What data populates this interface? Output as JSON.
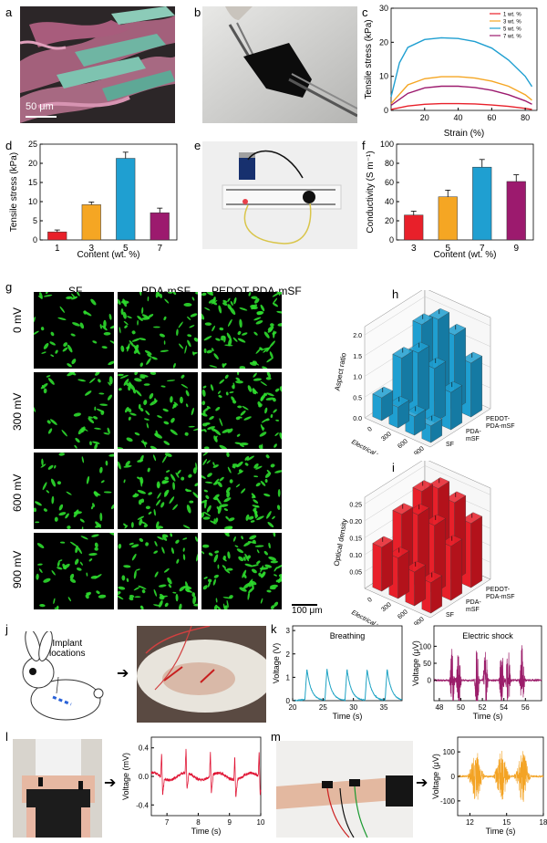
{
  "panel_labels": [
    "a",
    "b",
    "c",
    "d",
    "e",
    "f",
    "g",
    "h",
    "i",
    "j",
    "k",
    "l",
    "m"
  ],
  "panel_a": {
    "scalebar": "50 μm"
  },
  "colors": {
    "red": "#e8202a",
    "orange": "#f5a623",
    "blue": "#1f9fd1",
    "purple": "#9c1a6e",
    "cell_green": "#2edc2e",
    "breath": "#1fa3c4",
    "shock": "#9b1d6a",
    "ecg": "#e01535",
    "emg": "#f3a324"
  },
  "panel_g": {
    "col_labels": [
      "SF",
      "PDA-mSF",
      "PEDOT-PDA-mSF"
    ],
    "row_labels": [
      "0 mV",
      "300 mV",
      "600 mV",
      "900 mV"
    ],
    "scalebar": "100 μm"
  },
  "panel_j": {
    "implant_label": "Implant\nlocations"
  },
  "chart_data": [
    {
      "id": "c",
      "type": "line",
      "xlabel": "Strain (%)",
      "ylabel": "Tensile stress (kPa)",
      "xticks": [
        "20",
        "40",
        "60",
        "80"
      ],
      "yticks": [
        "0",
        "10",
        "20",
        "30"
      ],
      "xlim": [
        0,
        87
      ],
      "ylim": [
        0,
        30
      ],
      "legend": "top-right",
      "series": [
        {
          "name": "1 wt. %",
          "x": [
            0,
            10,
            20,
            30,
            40,
            50,
            60,
            70,
            80,
            84
          ],
          "y": [
            0.3,
            1.3,
            1.8,
            2.0,
            2.0,
            1.9,
            1.6,
            1.2,
            0.6,
            0.3
          ]
        },
        {
          "name": "3 wt. %",
          "x": [
            0,
            10,
            20,
            30,
            40,
            50,
            60,
            70,
            80,
            84
          ],
          "y": [
            2,
            7.5,
            9.3,
            9.9,
            9.9,
            9.5,
            8.6,
            7.1,
            4.6,
            3
          ]
        },
        {
          "name": "5 wt. %",
          "x": [
            0,
            5,
            10,
            20,
            30,
            40,
            50,
            60,
            70,
            80,
            84
          ],
          "y": [
            4,
            14,
            18.5,
            20.8,
            21.3,
            21.1,
            20.2,
            18.3,
            14.8,
            10,
            7
          ]
        },
        {
          "name": "7 wt. %",
          "x": [
            0,
            10,
            20,
            30,
            40,
            50,
            60,
            70,
            80,
            84
          ],
          "y": [
            1.5,
            5,
            6.6,
            7.1,
            7.1,
            6.7,
            5.9,
            4.6,
            2.8,
            1.8
          ]
        }
      ]
    },
    {
      "id": "d",
      "type": "bar",
      "xlabel": "Content (wt. %)",
      "ylabel": "Tensile stress (kPa)",
      "categories": [
        "1",
        "3",
        "5",
        "7"
      ],
      "values": [
        2.1,
        9.2,
        21.3,
        7.1
      ],
      "errors": [
        0.5,
        0.7,
        1.6,
        1.2
      ],
      "yticks": [
        "0",
        "5",
        "10",
        "15",
        "20",
        "25"
      ],
      "ylim": [
        0,
        25
      ]
    },
    {
      "id": "f",
      "type": "bar",
      "xlabel": "Content (wt. %)",
      "ylabel": "Conductivity (S m⁻¹)",
      "categories": [
        "3",
        "5",
        "7",
        "9"
      ],
      "values": [
        26,
        45,
        76,
        61
      ],
      "errors": [
        4,
        7,
        8,
        7
      ],
      "yticks": [
        "0",
        "20",
        "40",
        "60",
        "80",
        "100"
      ],
      "ylim": [
        0,
        100
      ]
    },
    {
      "id": "h",
      "type": "bar",
      "zlabel": "Aspect ratio",
      "xlabel": "Electrical voltage (mV)",
      "ylabel_depth": [
        "SF",
        "PDA-\nmSF",
        "PEDOT-\nPDA-mSF"
      ],
      "x_categories": [
        "0",
        "300",
        "600",
        "900"
      ],
      "zticks": [
        "0.0",
        "0.5",
        "1.0",
        "1.5",
        "2.0"
      ],
      "zlim": [
        0,
        2.2
      ],
      "series": [
        {
          "name": "SF",
          "values": [
            0.55,
            0.5,
            0.45,
            0.4
          ]
        },
        {
          "name": "PDA-mSF",
          "values": [
            1.2,
            1.5,
            1.3,
            0.9
          ]
        },
        {
          "name": "PEDOT-PDA-mSF",
          "values": [
            1.7,
            2.0,
            1.8,
            1.3
          ]
        }
      ]
    },
    {
      "id": "i",
      "type": "bar",
      "zlabel": "Optical density",
      "xlabel": "Electrical voltage (mV)",
      "ylabel_depth": [
        "SF",
        "PDA-\nmSF",
        "PEDOT-\nPDA-mSF"
      ],
      "x_categories": [
        "0",
        "300",
        "600",
        "900"
      ],
      "zticks": [
        "0.05",
        "0.10",
        "0.15",
        "0.20",
        "0.25"
      ],
      "zlim": [
        0,
        0.27
      ],
      "series": [
        {
          "name": "SF",
          "values": [
            0.13,
            0.12,
            0.1,
            0.09
          ]
        },
        {
          "name": "PDA-mSF",
          "values": [
            0.19,
            0.21,
            0.2,
            0.16
          ]
        },
        {
          "name": "PEDOT-PDA-mSF",
          "values": [
            0.22,
            0.25,
            0.23,
            0.19
          ]
        }
      ]
    },
    {
      "id": "k1",
      "type": "line",
      "title": "Breathing",
      "xlabel": "Time (s)",
      "ylabel": "Voltage (V)",
      "xticks": [
        "20",
        "25",
        "30",
        "35"
      ],
      "yticks": [
        "0",
        "1",
        "2",
        "3"
      ],
      "xlim": [
        20,
        38
      ],
      "ylim": [
        0,
        3.2
      ]
    },
    {
      "id": "k2",
      "type": "line",
      "title": "Electric shock",
      "xlabel": "Time (s)",
      "ylabel": "Voltage (μV)",
      "xticks": [
        "48",
        "50",
        "52",
        "54",
        "56"
      ],
      "yticks": [
        "0",
        "50",
        "100"
      ],
      "xlim": [
        47.5,
        57.5
      ],
      "ylim": [
        -60,
        160
      ]
    },
    {
      "id": "l",
      "type": "line",
      "xlabel": "Time (s)",
      "ylabel": "Voltage (mV)",
      "xticks": [
        "7",
        "8",
        "9",
        "10"
      ],
      "yticks": [
        "-0.4",
        "0.0",
        "0.4"
      ],
      "xlim": [
        6.5,
        10
      ],
      "ylim": [
        -0.55,
        0.55
      ]
    },
    {
      "id": "m",
      "type": "line",
      "xlabel": "Time (s)",
      "ylabel": "Voltage (μV)",
      "xticks": [
        "12",
        "15",
        "18"
      ],
      "yticks": [
        "-100",
        "0",
        "100"
      ],
      "xlim": [
        11,
        18
      ],
      "ylim": [
        -160,
        160
      ]
    }
  ]
}
